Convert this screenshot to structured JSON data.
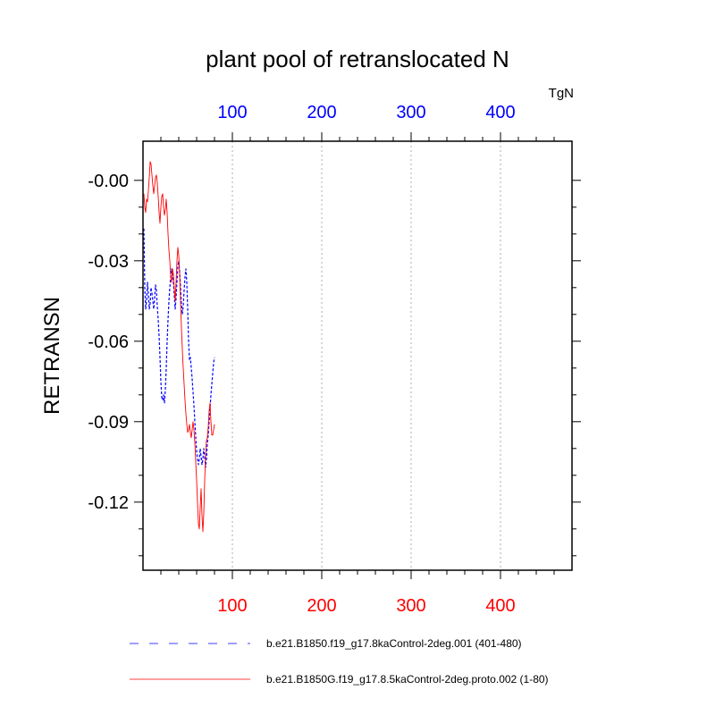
{
  "chart_data": {
    "type": "line",
    "title": "plant pool of retranslocated N",
    "ylabel": "RETRANSN",
    "units": "TgN",
    "xlim": [
      0,
      480
    ],
    "ylim": [
      -0.1454,
      0.0146
    ],
    "bottom_ticks": [
      {
        "value": 100,
        "label": "100"
      },
      {
        "value": 200,
        "label": "200"
      },
      {
        "value": 300,
        "label": "300"
      },
      {
        "value": 400,
        "label": "400"
      }
    ],
    "top_ticks": [
      {
        "value": 100,
        "label": "100"
      },
      {
        "value": 200,
        "label": "200"
      },
      {
        "value": 300,
        "label": "300"
      },
      {
        "value": 400,
        "label": "400"
      }
    ],
    "y_ticks": [
      {
        "value": 0.0,
        "label": "-0.00"
      },
      {
        "value": -0.03,
        "label": "-0.03"
      },
      {
        "value": -0.06,
        "label": "-0.06"
      },
      {
        "value": -0.09,
        "label": "-0.09"
      },
      {
        "value": -0.12,
        "label": "-0.12"
      }
    ],
    "grid": "vertical dashed at major ticks",
    "legend_position": "bottom",
    "series": [
      {
        "name": "b.e21.B1850.f19_g17.8kaControl-2deg.001 (401-480)",
        "color": "#0000ff",
        "dash": "dashed",
        "x": [
          1,
          2,
          3,
          4,
          5,
          6,
          7,
          8,
          9,
          10,
          11,
          12,
          13,
          14,
          15,
          16,
          17,
          18,
          19,
          20,
          21,
          22,
          23,
          24,
          25,
          26,
          27,
          28,
          29,
          30,
          31,
          32,
          33,
          34,
          35,
          36,
          37,
          38,
          39,
          40,
          41,
          42,
          43,
          44,
          45,
          46,
          47,
          48,
          49,
          50,
          51,
          52,
          53,
          54,
          55,
          56,
          57,
          58,
          59,
          60,
          61,
          62,
          63,
          64,
          65,
          66,
          67,
          68,
          69,
          70,
          71,
          72,
          73,
          74,
          75,
          76,
          77,
          78,
          79,
          80
        ],
        "y": [
          -0.018,
          -0.04,
          -0.048,
          -0.045,
          -0.038,
          -0.042,
          -0.048,
          -0.046,
          -0.04,
          -0.042,
          -0.045,
          -0.048,
          -0.044,
          -0.039,
          -0.041,
          -0.047,
          -0.052,
          -0.058,
          -0.066,
          -0.075,
          -0.081,
          -0.082,
          -0.08,
          -0.083,
          -0.078,
          -0.07,
          -0.06,
          -0.052,
          -0.045,
          -0.04,
          -0.036,
          -0.033,
          -0.035,
          -0.038,
          -0.043,
          -0.048,
          -0.044,
          -0.038,
          -0.032,
          -0.03,
          -0.034,
          -0.04,
          -0.046,
          -0.05,
          -0.047,
          -0.041,
          -0.036,
          -0.033,
          -0.038,
          -0.048,
          -0.06,
          -0.067,
          -0.066,
          -0.07,
          -0.074,
          -0.079,
          -0.084,
          -0.09,
          -0.096,
          -0.101,
          -0.104,
          -0.106,
          -0.104,
          -0.1,
          -0.103,
          -0.106,
          -0.104,
          -0.1,
          -0.103,
          -0.107,
          -0.104,
          -0.098,
          -0.095,
          -0.09,
          -0.085,
          -0.08,
          -0.076,
          -0.072,
          -0.068,
          -0.066
        ]
      },
      {
        "name": "b.e21.B1850G.f19_g17.8.5kaControl-2deg.proto.002 (1-80)",
        "color": "#ff0000",
        "dash": "solid",
        "x": [
          1,
          2,
          3,
          4,
          5,
          6,
          7,
          8,
          9,
          10,
          11,
          12,
          13,
          14,
          15,
          16,
          17,
          18,
          19,
          20,
          21,
          22,
          23,
          24,
          25,
          26,
          27,
          28,
          29,
          30,
          31,
          32,
          33,
          34,
          35,
          36,
          37,
          38,
          39,
          40,
          41,
          42,
          43,
          44,
          45,
          46,
          47,
          48,
          49,
          50,
          51,
          52,
          53,
          54,
          55,
          56,
          57,
          58,
          59,
          60,
          61,
          62,
          63,
          64,
          65,
          66,
          67,
          68,
          69,
          70,
          71,
          72,
          73,
          74,
          75,
          76,
          77,
          78,
          79,
          80
        ],
        "y": [
          -0.005,
          -0.01,
          -0.012,
          -0.007,
          -0.008,
          -0.004,
          0.001,
          0.007,
          0.006,
          0.002,
          -0.002,
          -0.005,
          -0.002,
          0.001,
          0.002,
          -0.001,
          -0.006,
          -0.012,
          -0.016,
          -0.01,
          -0.006,
          -0.005,
          -0.01,
          -0.013,
          -0.011,
          -0.007,
          -0.012,
          -0.02,
          -0.026,
          -0.03,
          -0.036,
          -0.038,
          -0.033,
          -0.035,
          -0.04,
          -0.045,
          -0.038,
          -0.03,
          -0.025,
          -0.028,
          -0.035,
          -0.045,
          -0.055,
          -0.063,
          -0.07,
          -0.076,
          -0.082,
          -0.087,
          -0.091,
          -0.094,
          -0.093,
          -0.091,
          -0.094,
          -0.096,
          -0.093,
          -0.09,
          -0.093,
          -0.098,
          -0.105,
          -0.112,
          -0.12,
          -0.128,
          -0.13,
          -0.122,
          -0.115,
          -0.125,
          -0.131,
          -0.124,
          -0.112,
          -0.103,
          -0.097,
          -0.096,
          -0.092,
          -0.086,
          -0.083,
          -0.09,
          -0.095,
          -0.095,
          -0.093,
          -0.091
        ]
      }
    ]
  }
}
